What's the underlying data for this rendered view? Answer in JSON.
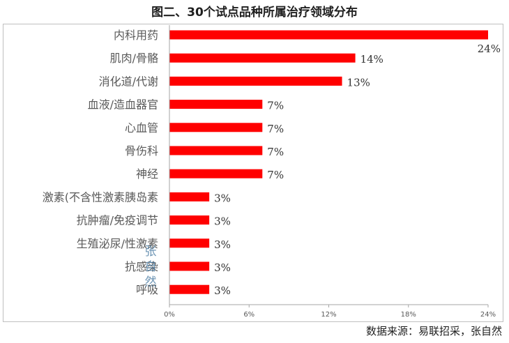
{
  "title": "图二、30个试点品种所属治疗领域分布",
  "source": "数据来源：易联招采，张自然",
  "watermark": "张自然",
  "chart_data": {
    "type": "bar",
    "orientation": "horizontal",
    "title": "图二、30个试点品种所属治疗领域分布",
    "categories": [
      "内科用药",
      "肌肉/骨骼",
      "消化道/代谢",
      "血液/造血器官",
      "心血管",
      "骨伤科",
      "神经",
      "激素(不含性激素胰岛素",
      "抗肿瘤/免疫调节",
      "生殖泌尿/性激素",
      "抗感染",
      "呼吸"
    ],
    "values": [
      24,
      14,
      13,
      7,
      7,
      7,
      7,
      3,
      3,
      3,
      3,
      3
    ],
    "value_labels": [
      "24%",
      "14%",
      "13%",
      "7%",
      "7%",
      "7%",
      "7%",
      "3%",
      "3%",
      "3%",
      "3%",
      "3%"
    ],
    "xlim": [
      0,
      24
    ],
    "xticks": [
      0,
      6,
      12,
      18,
      24
    ],
    "xtick_labels": [
      "0%",
      "6%",
      "12%",
      "18%",
      "24%"
    ],
    "bar_color": "#ff0000",
    "grid": false,
    "legend": "none"
  }
}
